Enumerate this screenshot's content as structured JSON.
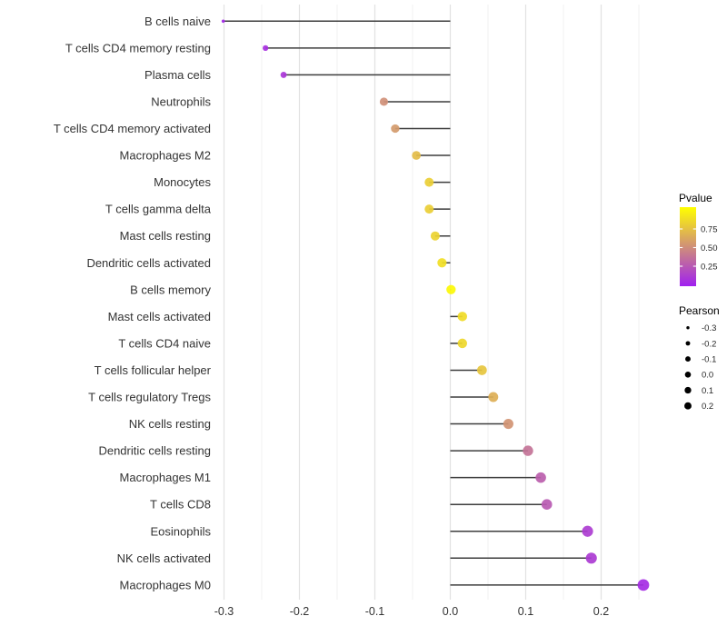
{
  "chart_data": {
    "type": "lollipop",
    "orientation": "horizontal",
    "title": "",
    "xlabel": "",
    "ylabel": "",
    "x_tick_labels": [
      "-0.3",
      "-0.2",
      "-0.1",
      "0.0",
      "0.1",
      "0.2"
    ],
    "x_tick_values": [
      -0.3,
      -0.2,
      -0.1,
      0.0,
      0.1,
      0.2
    ],
    "xlim": [
      -0.31,
      0.267
    ],
    "grid": "vertical major and minor, no horizontal",
    "rows": [
      {
        "label": "B cells naive",
        "pearson": -0.301,
        "pvalue": 0.03
      },
      {
        "label": "T cells CD4 memory resting",
        "pearson": -0.245,
        "pvalue": 0.07
      },
      {
        "label": "Plasma cells",
        "pearson": -0.221,
        "pvalue": 0.1
      },
      {
        "label": "Neutrophils",
        "pearson": -0.088,
        "pvalue": 0.5
      },
      {
        "label": "T cells CD4 memory activated",
        "pearson": -0.073,
        "pvalue": 0.55
      },
      {
        "label": "Macrophages M2",
        "pearson": -0.045,
        "pvalue": 0.7
      },
      {
        "label": "Monocytes",
        "pearson": -0.028,
        "pvalue": 0.78
      },
      {
        "label": "T cells gamma delta",
        "pearson": -0.028,
        "pvalue": 0.78
      },
      {
        "label": "Mast cells resting",
        "pearson": -0.02,
        "pvalue": 0.8
      },
      {
        "label": "Dendritic cells activated",
        "pearson": -0.011,
        "pvalue": 0.85
      },
      {
        "label": "B cells memory",
        "pearson": 0.001,
        "pvalue": 0.97
      },
      {
        "label": "Mast cells activated",
        "pearson": 0.016,
        "pvalue": 0.84
      },
      {
        "label": "T cells CD4 naive",
        "pearson": 0.016,
        "pvalue": 0.82
      },
      {
        "label": "T cells follicular helper",
        "pearson": 0.042,
        "pvalue": 0.74
      },
      {
        "label": "T cells regulatory  Tregs",
        "pearson": 0.057,
        "pvalue": 0.64
      },
      {
        "label": "NK cells resting",
        "pearson": 0.077,
        "pvalue": 0.52
      },
      {
        "label": "Dendritic cells resting",
        "pearson": 0.103,
        "pvalue": 0.37
      },
      {
        "label": "Macrophages M1",
        "pearson": 0.12,
        "pvalue": 0.28
      },
      {
        "label": "T cells CD8",
        "pearson": 0.128,
        "pvalue": 0.26
      },
      {
        "label": "Eosinophils",
        "pearson": 0.182,
        "pvalue": 0.13
      },
      {
        "label": "NK cells activated",
        "pearson": 0.187,
        "pvalue": 0.12
      },
      {
        "label": "Macrophages M0",
        "pearson": 0.256,
        "pvalue": 0.05
      }
    ],
    "legend_pvalue": {
      "title": "Pvalue",
      "tick_labels": [
        "0.75",
        "0.50",
        "0.25"
      ],
      "tick_values": [
        0.75,
        0.5,
        0.25
      ],
      "range": [
        0,
        1
      ],
      "color_low": "#A020F0",
      "color_high": "#FFFF00",
      "position": "right"
    },
    "legend_pearson": {
      "title": "Pearson",
      "entry_labels": [
        "-0.3",
        "-0.2",
        "-0.1",
        "0.0",
        "0.1",
        "0.2"
      ],
      "entry_values": [
        -0.3,
        -0.2,
        -0.1,
        0.0,
        0.1,
        0.2
      ],
      "dot_color": "#000000",
      "position": "right"
    }
  },
  "colors": {
    "background": "#ffffff",
    "segment": "#3d3d3d",
    "grid_major": "#e2e2e2",
    "grid_minor": "#f0f0f0",
    "axis_text": "#333333",
    "legend_title_text": "#000000",
    "legend_tick_text": "#262626"
  }
}
